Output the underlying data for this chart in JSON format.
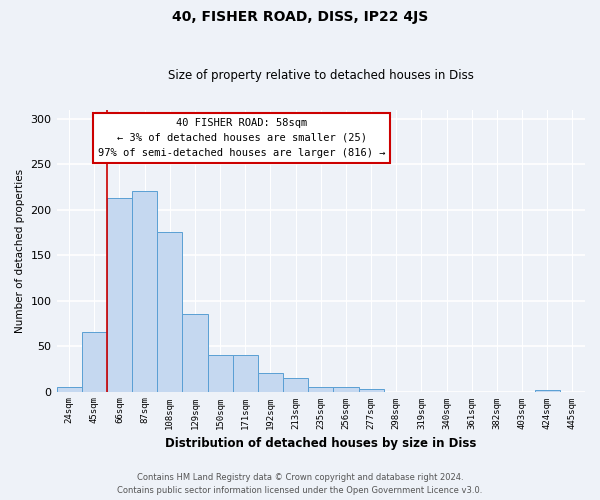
{
  "title": "40, FISHER ROAD, DISS, IP22 4JS",
  "subtitle": "Size of property relative to detached houses in Diss",
  "xlabel": "Distribution of detached houses by size in Diss",
  "ylabel": "Number of detached properties",
  "bin_labels": [
    "24sqm",
    "45sqm",
    "66sqm",
    "87sqm",
    "108sqm",
    "129sqm",
    "150sqm",
    "171sqm",
    "192sqm",
    "213sqm",
    "235sqm",
    "256sqm",
    "277sqm",
    "298sqm",
    "319sqm",
    "340sqm",
    "361sqm",
    "382sqm",
    "403sqm",
    "424sqm",
    "445sqm"
  ],
  "bar_heights": [
    5,
    65,
    213,
    220,
    175,
    85,
    40,
    40,
    20,
    15,
    5,
    5,
    3,
    0,
    0,
    0,
    0,
    0,
    0,
    2,
    0
  ],
  "bar_color": "#c5d8f0",
  "bar_edge_color": "#5a9fd4",
  "red_line_index": 2,
  "red_line_color": "#cc0000",
  "annotation_text": "40 FISHER ROAD: 58sqm\n← 3% of detached houses are smaller (25)\n97% of semi-detached houses are larger (816) →",
  "annotation_box_color": "white",
  "annotation_box_edge_color": "#cc0000",
  "ylim": [
    0,
    310
  ],
  "yticks": [
    0,
    50,
    100,
    150,
    200,
    250,
    300
  ],
  "footer_line1": "Contains HM Land Registry data © Crown copyright and database right 2024.",
  "footer_line2": "Contains public sector information licensed under the Open Government Licence v3.0.",
  "bg_color": "#eef2f8",
  "grid_color": "white"
}
